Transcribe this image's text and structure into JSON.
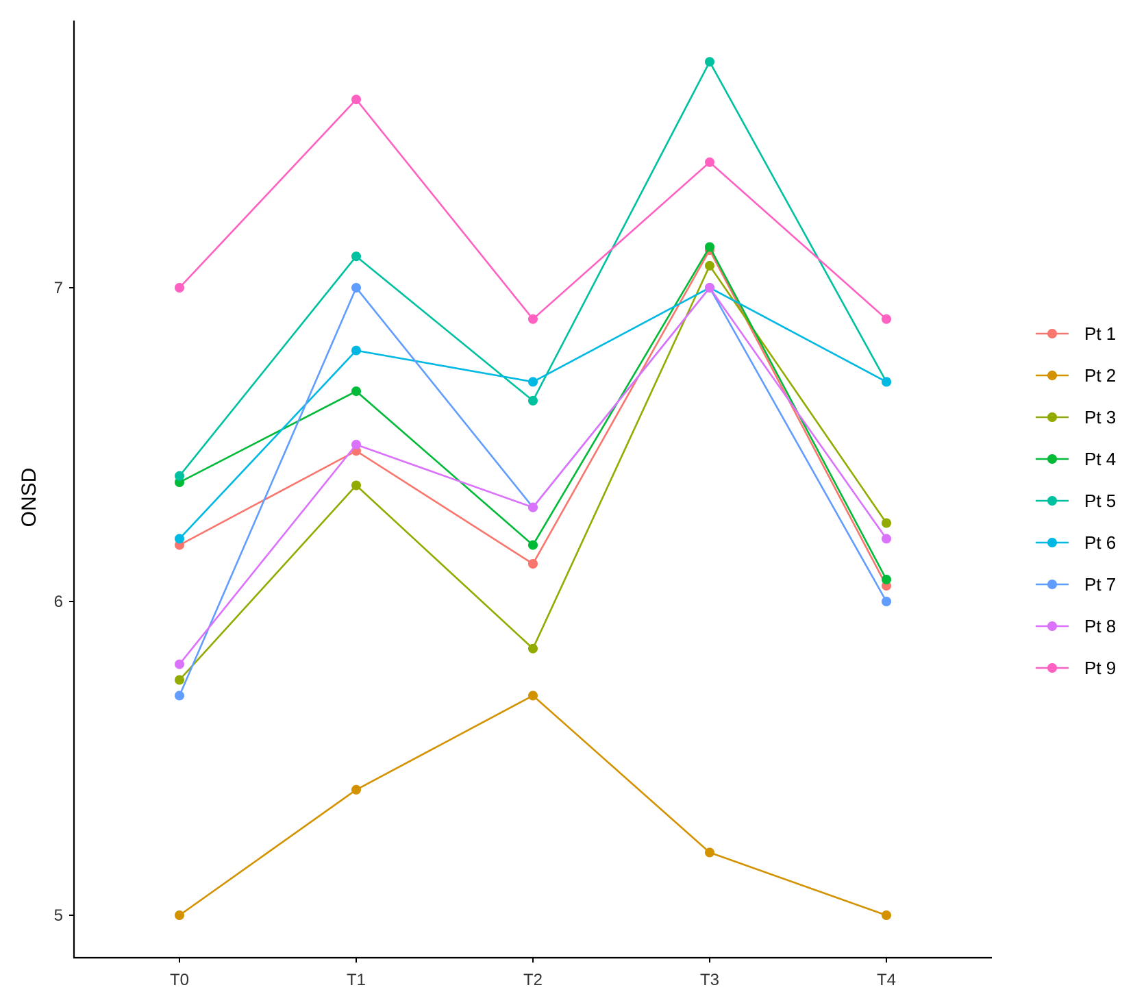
{
  "chart_data": {
    "type": "line",
    "title": "",
    "xlabel": "",
    "ylabel": "ONSD",
    "categories": [
      "T0",
      "T1",
      "T2",
      "T3",
      "T4"
    ],
    "ylim": [
      4.88,
      7.85
    ],
    "yticks": [
      5,
      6,
      7
    ],
    "grid": false,
    "legend_position": "right",
    "series": [
      {
        "name": "Pt 1",
        "color": "#F8766D",
        "values": [
          6.18,
          6.48,
          6.12,
          7.12,
          6.05
        ]
      },
      {
        "name": "Pt 2",
        "color": "#D39200",
        "values": [
          5.0,
          5.4,
          5.7,
          5.2,
          5.0
        ]
      },
      {
        "name": "Pt 3",
        "color": "#93AA00",
        "values": [
          5.75,
          6.37,
          5.85,
          7.07,
          6.25
        ]
      },
      {
        "name": "Pt 4",
        "color": "#00BA38",
        "values": [
          6.38,
          6.67,
          6.18,
          7.13,
          6.07
        ]
      },
      {
        "name": "Pt 5",
        "color": "#00C19F",
        "values": [
          6.4,
          7.1,
          6.64,
          7.72,
          6.7
        ]
      },
      {
        "name": "Pt 6",
        "color": "#00B9E3",
        "values": [
          6.2,
          6.8,
          6.7,
          7.0,
          6.7
        ]
      },
      {
        "name": "Pt 7",
        "color": "#619CFF",
        "values": [
          5.7,
          7.0,
          6.3,
          7.0,
          6.0
        ]
      },
      {
        "name": "Pt 8",
        "color": "#DB72FB",
        "values": [
          5.8,
          6.5,
          6.3,
          7.0,
          6.2
        ]
      },
      {
        "name": "Pt 9",
        "color": "#FF61C3",
        "values": [
          7.0,
          7.6,
          6.9,
          7.4,
          6.9
        ]
      }
    ]
  }
}
